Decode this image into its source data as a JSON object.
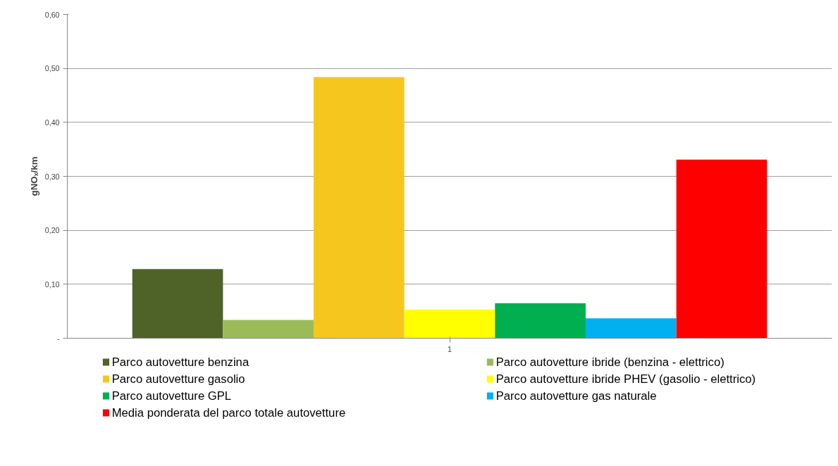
{
  "chart_data": {
    "type": "bar",
    "ylabel": "gNOₓ/km",
    "categories": [
      "1"
    ],
    "series": [
      {
        "name": "Parco autovetture benzina",
        "color": "#4f6228",
        "values": [
          0.128
        ]
      },
      {
        "name": "Parco autovetture ibride (benzina - elettrico)",
        "color": "#9bbb59",
        "values": [
          0.034
        ]
      },
      {
        "name": "Parco autovetture gasolio",
        "color": "#f5c71e",
        "values": [
          0.484
        ]
      },
      {
        "name": "Parco autovetture ibride PHEV (gasolio - elettrico)",
        "color": "#ffff00",
        "values": [
          0.053
        ]
      },
      {
        "name": "Parco autovetture GPL",
        "color": "#00b050",
        "values": [
          0.065
        ]
      },
      {
        "name": "Parco autovetture gas naturale",
        "color": "#00b0f0",
        "values": [
          0.037
        ]
      },
      {
        "name": "Media ponderata del parco totale autovetture",
        "color": "#ff0000",
        "values": [
          0.331
        ]
      }
    ],
    "ylim": [
      0,
      0.6
    ],
    "yticks": [
      {
        "value": 0,
        "label": "-"
      },
      {
        "value": 0.1,
        "label": "0,10"
      },
      {
        "value": 0.2,
        "label": "0,20"
      },
      {
        "value": 0.3,
        "label": "0,30"
      },
      {
        "value": 0.4,
        "label": "0,40"
      },
      {
        "value": 0.5,
        "label": "0,50"
      },
      {
        "value": 0.6,
        "label": "0,60"
      }
    ],
    "grid": "y",
    "legend": "bottom"
  }
}
